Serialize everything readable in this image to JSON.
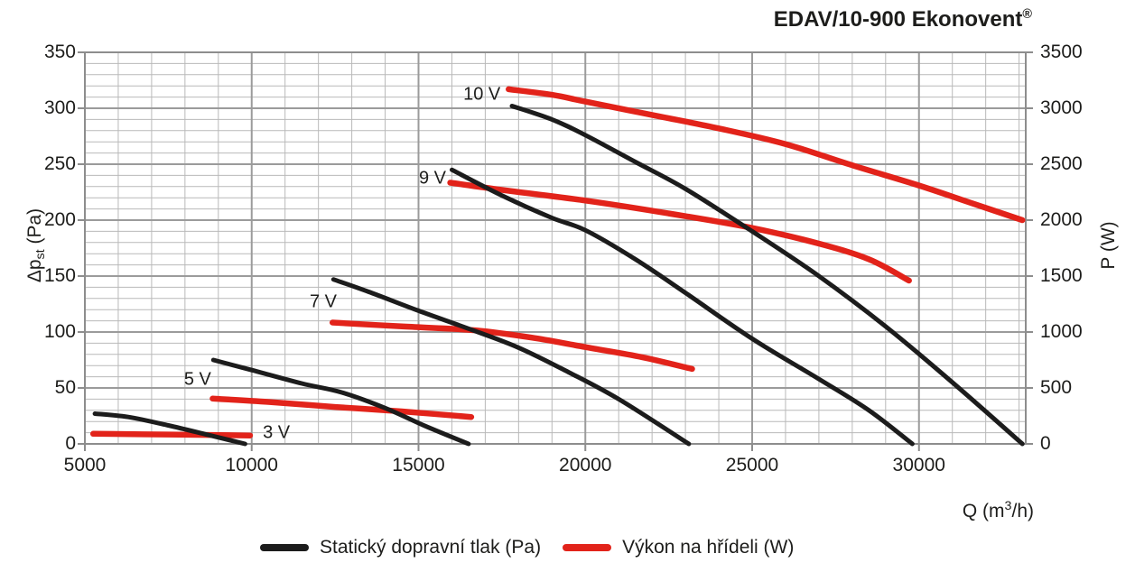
{
  "title": {
    "text": "EDAV/10-900 Ekonovent",
    "registered": "®"
  },
  "axes": {
    "left": {
      "label_prefix": "Δp",
      "label_sub": "st",
      "label_suffix": " (Pa)",
      "ticks": [
        0,
        50,
        100,
        150,
        200,
        250,
        300,
        350
      ]
    },
    "right": {
      "label": "P (W)",
      "ticks": [
        0,
        500,
        1000,
        1500,
        2000,
        2500,
        3000,
        3500
      ]
    },
    "bottom": {
      "label_prefix": "Q (m",
      "label_sup": "3",
      "label_suffix": "/h)",
      "ticks": [
        5000,
        10000,
        15000,
        20000,
        25000,
        30000
      ]
    }
  },
  "legend": [
    {
      "label": "Statický dopravní tlak (Pa)",
      "color": "#1c1c1c"
    },
    {
      "label": "Výkon na hřídeli (W)",
      "color": "#e2231a"
    }
  ],
  "chart_data": {
    "type": "line",
    "title": "EDAV/10-900 Ekonovent®",
    "xlabel": "Q (m³/h)",
    "ylabel_left": "Δpst (Pa)",
    "ylabel_right": "P (W)",
    "xlim": [
      5000,
      33200
    ],
    "ylim_left": [
      0,
      350
    ],
    "ylim_right": [
      0,
      3500
    ],
    "grid": {
      "x_minor_step": 1000,
      "x_major_step": 5000,
      "y_minor_step_pa": 10,
      "y_major_step_pa": 50
    },
    "legend_position": "bottom",
    "annotations": [
      {
        "text": "10 V",
        "q": 16900,
        "pa": 312
      },
      {
        "text": "9 V",
        "q": 15420,
        "pa": 237
      },
      {
        "text": "7 V",
        "q": 12145,
        "pa": 127
      },
      {
        "text": "5 V",
        "q": 8380,
        "pa": 57
      },
      {
        "text": "3 V",
        "q": 10740,
        "pa": 10
      }
    ],
    "series": [
      {
        "id": "pressure-curve-3v",
        "name": "Statický dopravní tlak 3 V",
        "axis": "left",
        "color": "#1c1c1c",
        "width": 5,
        "points": [
          [
            5300,
            27
          ],
          [
            6300,
            24
          ],
          [
            7500,
            16.5
          ],
          [
            8700,
            8
          ],
          [
            9800,
            0
          ]
        ]
      },
      {
        "id": "pressure-curve-5v",
        "name": "Statický dopravní tlak 5 V",
        "axis": "left",
        "color": "#1c1c1c",
        "width": 5,
        "points": [
          [
            8850,
            75
          ],
          [
            10000,
            66
          ],
          [
            11500,
            54
          ],
          [
            12700,
            46
          ],
          [
            14000,
            32
          ],
          [
            15200,
            16
          ],
          [
            16500,
            0
          ]
        ]
      },
      {
        "id": "pressure-curve-7v",
        "name": "Statický dopravní tlak 7 V",
        "axis": "left",
        "color": "#1c1c1c",
        "width": 5,
        "points": [
          [
            12450,
            147
          ],
          [
            13500,
            136
          ],
          [
            15000,
            119
          ],
          [
            16500,
            103
          ],
          [
            18000,
            86
          ],
          [
            19500,
            64
          ],
          [
            21000,
            40
          ],
          [
            23100,
            0
          ]
        ]
      },
      {
        "id": "pressure-curve-9v",
        "name": "Statický dopravní tlak 9 V",
        "axis": "left",
        "color": "#1c1c1c",
        "width": 5,
        "points": [
          [
            16000,
            245
          ],
          [
            17500,
            222
          ],
          [
            19000,
            202
          ],
          [
            20000,
            191
          ],
          [
            21500,
            165
          ],
          [
            23000,
            135
          ],
          [
            25000,
            94
          ],
          [
            27000,
            58
          ],
          [
            28500,
            30
          ],
          [
            29800,
            0
          ]
        ]
      },
      {
        "id": "pressure-curve-10v",
        "name": "Statický dopravní tlak 10 V",
        "axis": "left",
        "color": "#1c1c1c",
        "width": 5,
        "points": [
          [
            17800,
            302
          ],
          [
            19000,
            290
          ],
          [
            20000,
            276
          ],
          [
            21500,
            252
          ],
          [
            23000,
            228
          ],
          [
            25000,
            190
          ],
          [
            27000,
            150
          ],
          [
            29000,
            105
          ],
          [
            31000,
            55
          ],
          [
            33100,
            0
          ]
        ]
      },
      {
        "id": "power-curve-3v",
        "name": "Výkon na hřídeli 3 V",
        "axis": "right",
        "color": "#e2231a",
        "width": 6.5,
        "points": [
          [
            5250,
            90
          ],
          [
            7500,
            84
          ],
          [
            9950,
            75
          ]
        ]
      },
      {
        "id": "power-curve-5v",
        "name": "Výkon na hřídeli 5 V",
        "axis": "right",
        "color": "#e2231a",
        "width": 6.5,
        "points": [
          [
            8830,
            405
          ],
          [
            10500,
            375
          ],
          [
            12500,
            330
          ],
          [
            14500,
            290
          ],
          [
            16580,
            240
          ]
        ]
      },
      {
        "id": "power-curve-7v",
        "name": "Výkon na hřídeli 7 V",
        "axis": "right",
        "color": "#e2231a",
        "width": 6.5,
        "points": [
          [
            12420,
            1085
          ],
          [
            14500,
            1050
          ],
          [
            16700,
            1015
          ],
          [
            18500,
            945
          ],
          [
            20000,
            865
          ],
          [
            21700,
            775
          ],
          [
            23200,
            670
          ]
        ]
      },
      {
        "id": "power-curve-9v",
        "name": "Výkon na hřídeli 9 V",
        "axis": "right",
        "color": "#e2231a",
        "width": 6.5,
        "points": [
          [
            15950,
            2335
          ],
          [
            17500,
            2270
          ],
          [
            20000,
            2175
          ],
          [
            22500,
            2060
          ],
          [
            25000,
            1930
          ],
          [
            27000,
            1790
          ],
          [
            28500,
            1650
          ],
          [
            29700,
            1460
          ]
        ]
      },
      {
        "id": "power-curve-10v",
        "name": "Výkon na hřídeli 10 V",
        "axis": "right",
        "color": "#e2231a",
        "width": 6.5,
        "points": [
          [
            17700,
            3170
          ],
          [
            19000,
            3120
          ],
          [
            20000,
            3060
          ],
          [
            22000,
            2940
          ],
          [
            24000,
            2820
          ],
          [
            26000,
            2680
          ],
          [
            28000,
            2490
          ],
          [
            30000,
            2310
          ],
          [
            31500,
            2160
          ],
          [
            33100,
            2000
          ]
        ]
      }
    ]
  }
}
